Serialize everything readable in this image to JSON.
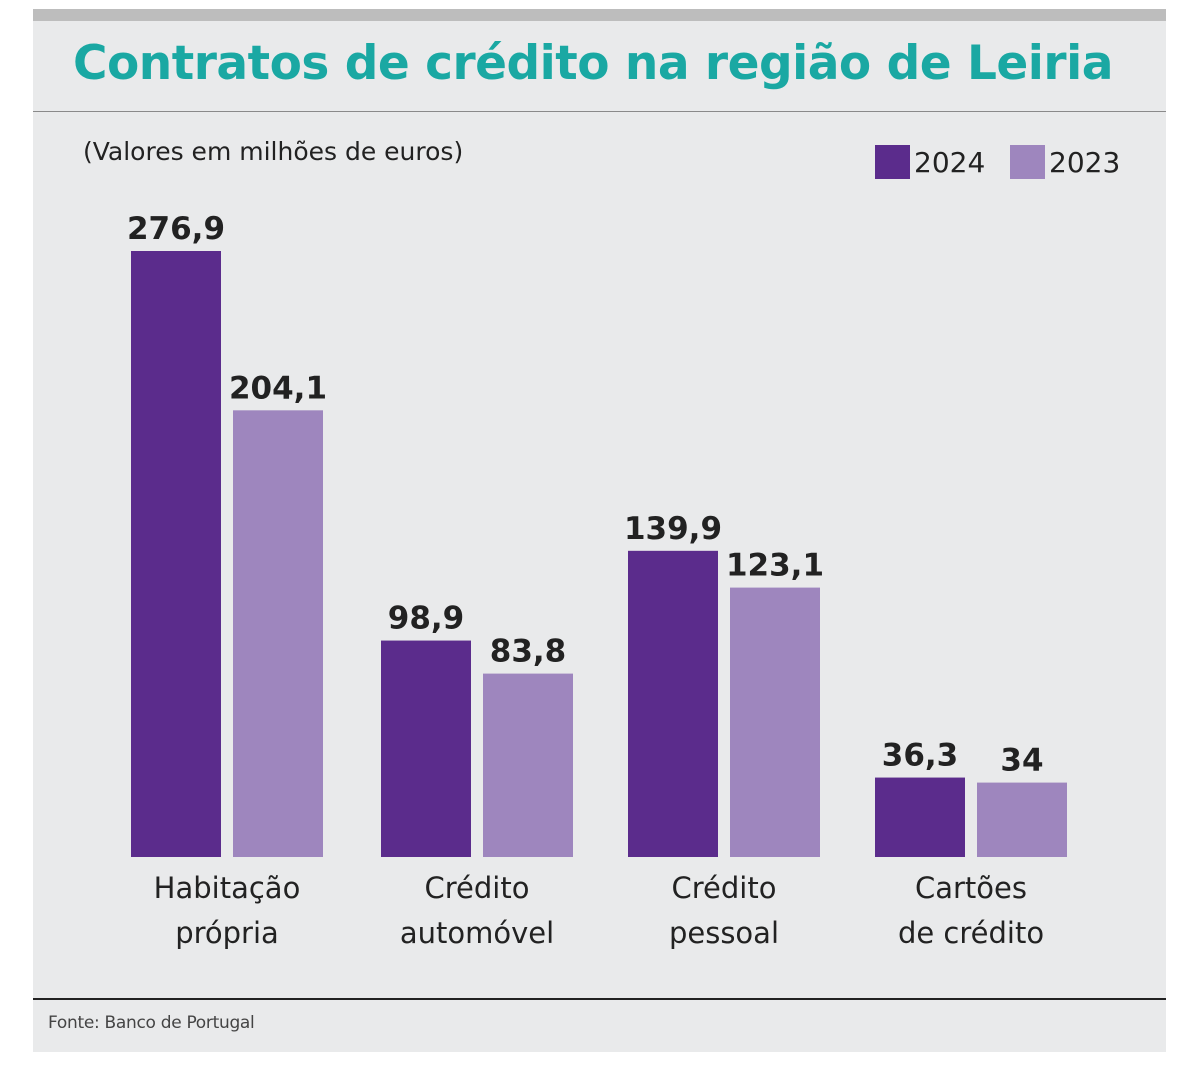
{
  "title": "Contratos de crédito na região de Leiria",
  "subtitle": "(Valores em milhões de euros)",
  "source": "Fonte: Banco de Portugal",
  "colors": {
    "accent_title": "#1aa8a3",
    "series_2024": "#5b2c8c",
    "series_2023": "#9e86be"
  },
  "chart_data": {
    "type": "bar",
    "categories": [
      [
        "Habitação",
        "própria"
      ],
      [
        "Crédito",
        "automóvel"
      ],
      [
        "Crédito",
        "pessoal"
      ],
      [
        "Cartões",
        "de crédito"
      ]
    ],
    "series": [
      {
        "name": "2024",
        "values": [
          276.9,
          98.9,
          139.9,
          36.3
        ],
        "labels": [
          "276,9",
          "98,9",
          "139,9",
          "36,3"
        ]
      },
      {
        "name": "2023",
        "values": [
          204.1,
          83.8,
          123.1,
          34
        ],
        "labels": [
          "204,1",
          "83,8",
          "123,1",
          "34"
        ]
      }
    ],
    "ylim": [
      0,
      276.9
    ],
    "legend": "top-right",
    "grid": false
  }
}
